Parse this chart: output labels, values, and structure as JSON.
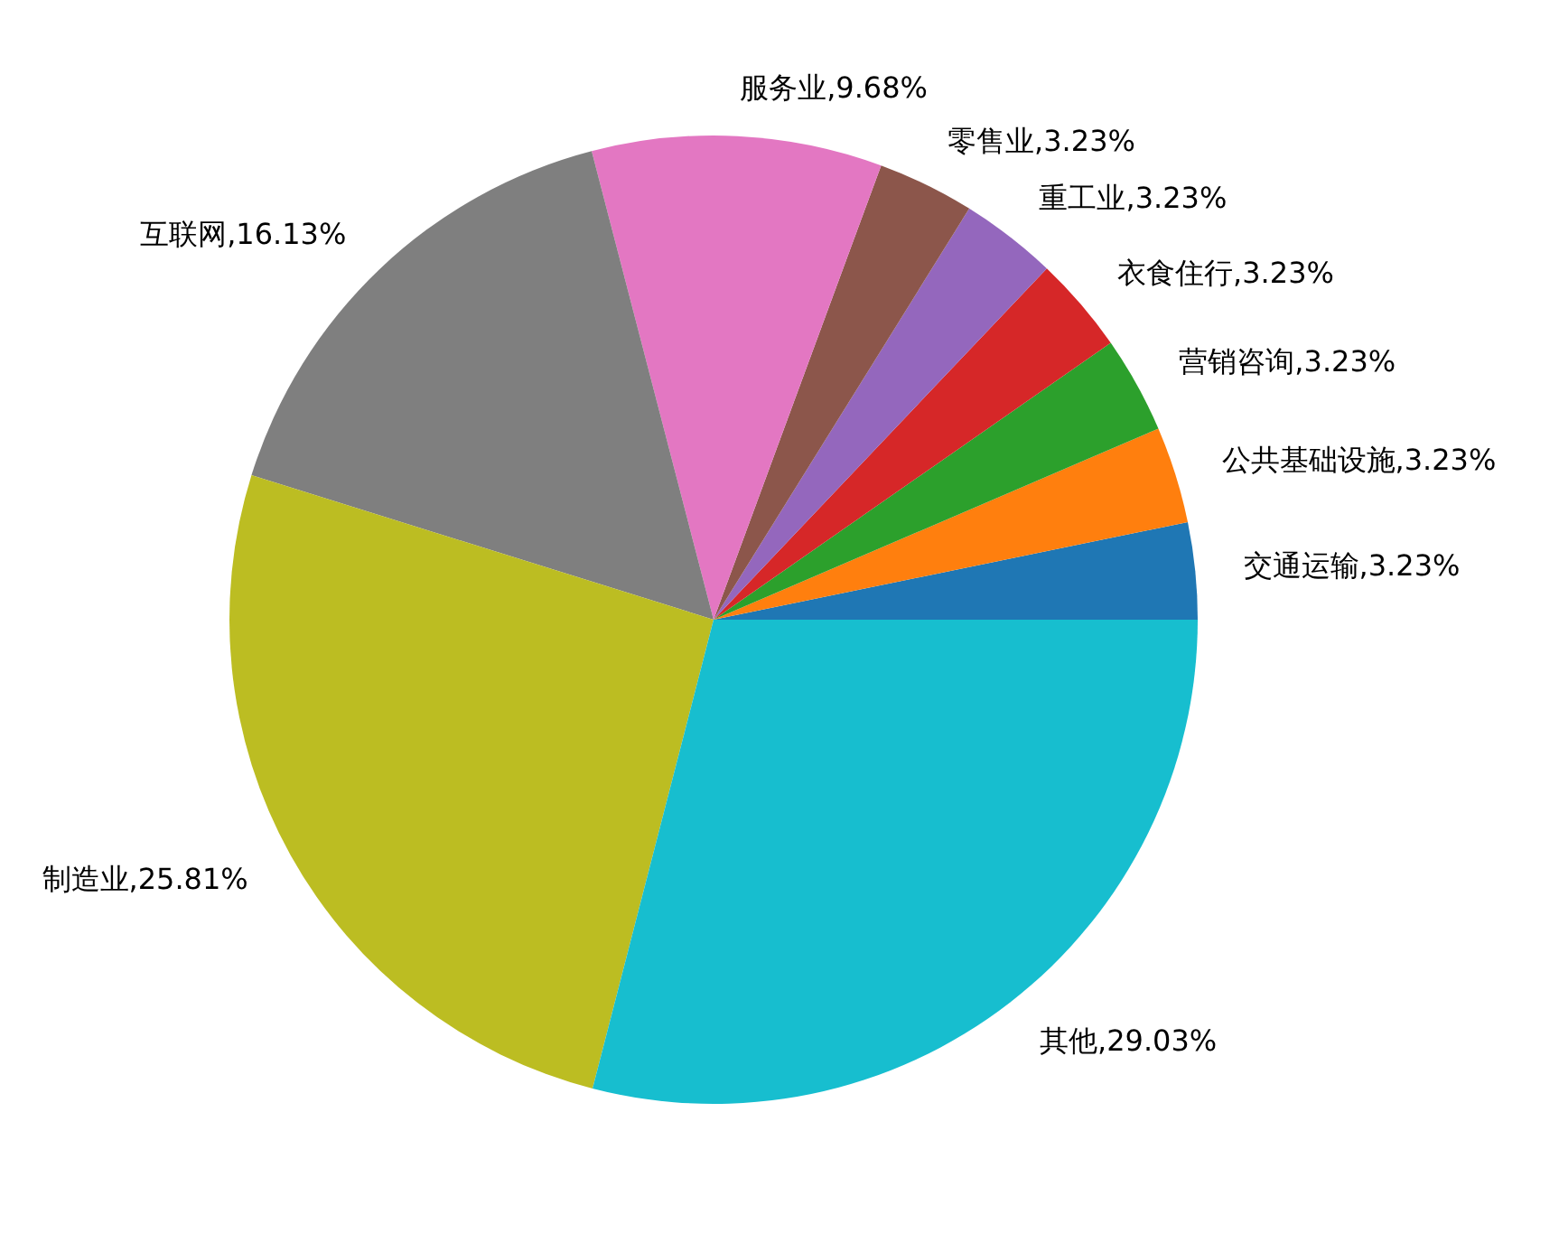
{
  "chart_data": {
    "type": "pie",
    "categories": [
      "交通运输",
      "公共基础设施",
      "营销咨询",
      "衣食住行",
      "重工业",
      "零售业",
      "服务业",
      "互联网",
      "制造业",
      "其他"
    ],
    "values": [
      3.23,
      3.23,
      3.23,
      3.23,
      3.23,
      3.23,
      9.68,
      16.13,
      25.81,
      29.03
    ],
    "value_labels": [
      "3.23%",
      "3.23%",
      "3.23%",
      "3.23%",
      "3.23%",
      "3.23%",
      "9.68%",
      "16.13%",
      "25.81%",
      "29.03%"
    ],
    "colors": [
      "#1f77b4",
      "#ff7f0e",
      "#2ca02c",
      "#d62728",
      "#9467bd",
      "#8c564b",
      "#e377c2",
      "#7f7f7f",
      "#bcbd22",
      "#17becf"
    ]
  }
}
